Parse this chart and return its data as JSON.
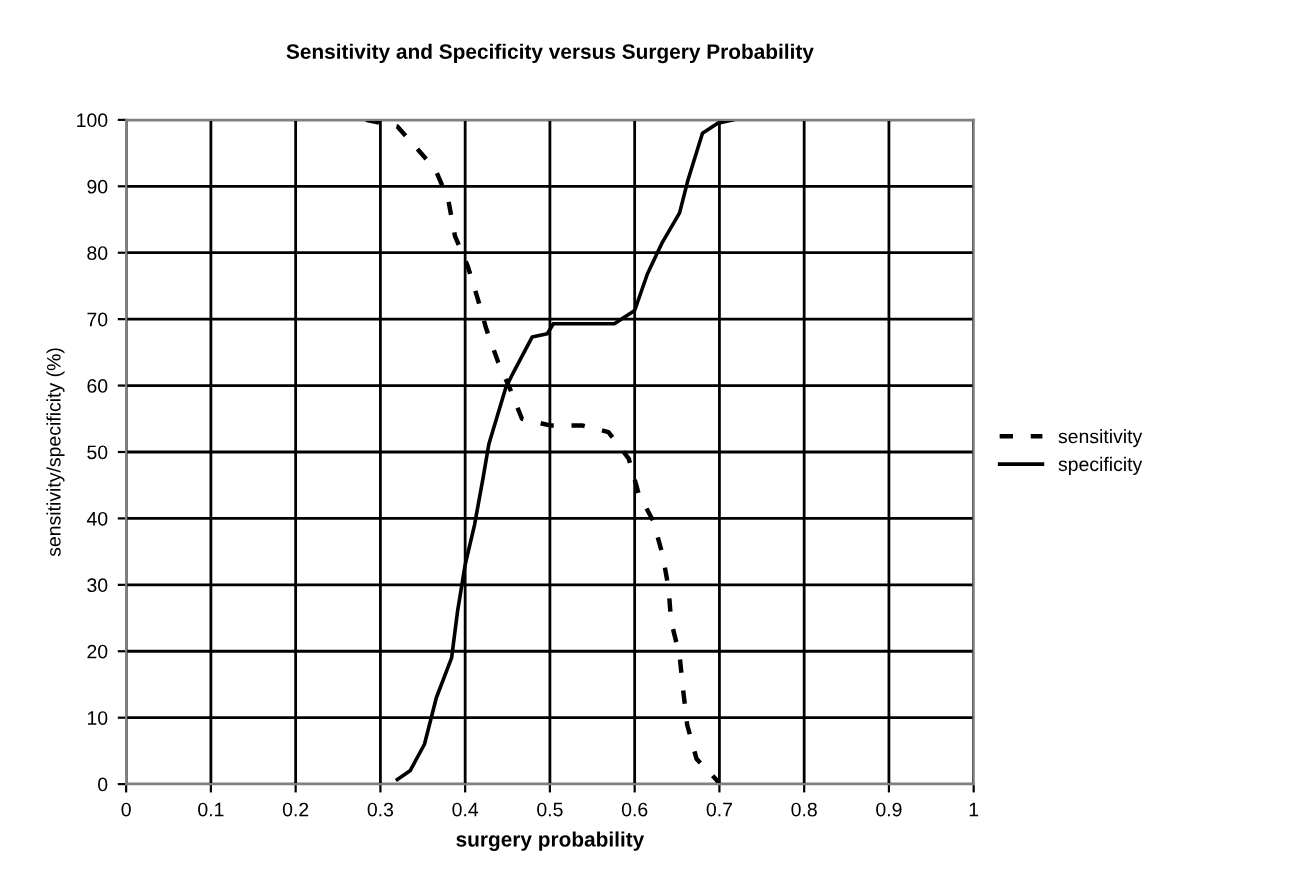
{
  "chart_data": {
    "type": "line",
    "title": "Sensitivity and Specificity versus Surgery Probability",
    "xlabel": "surgery probability",
    "ylabel": "sensitivity/specificity (%)",
    "xlim": [
      0,
      1
    ],
    "xticks": [
      0,
      0.1,
      0.2,
      0.3,
      0.4,
      0.5,
      0.6,
      0.7,
      0.8,
      0.9,
      1
    ],
    "ylim": [
      0,
      100
    ],
    "yticks": [
      0,
      10,
      20,
      30,
      40,
      50,
      60,
      70,
      80,
      90,
      100
    ],
    "grid": true,
    "legend": "right",
    "marker": "none",
    "series": [
      {
        "name": "sensitivity",
        "color": "#000000",
        "line_style": "dashed",
        "x": [
          0.283,
          0.32,
          0.341,
          0.365,
          0.38,
          0.388,
          0.403,
          0.415,
          0.425,
          0.439,
          0.453,
          0.467,
          0.5,
          0.538,
          0.569,
          0.593,
          0.605,
          0.622,
          0.633,
          0.64,
          0.643,
          0.653,
          0.657,
          0.662,
          0.673,
          0.699
        ],
        "values": [
          100,
          99,
          96,
          92.5,
          88,
          82.5,
          78,
          73,
          68.5,
          63.5,
          59.5,
          55,
          54,
          54,
          53,
          49,
          43.6,
          39.6,
          34.5,
          29.5,
          24.5,
          19.4,
          14.4,
          8.9,
          3.8,
          0.3
        ]
      },
      {
        "name": "specificity",
        "color": "#000000",
        "line_style": "solid",
        "x": [
          0.32,
          0.335,
          0.352,
          0.366,
          0.384,
          0.391,
          0.4,
          0.411,
          0.421,
          0.428,
          0.448,
          0.457,
          0.479,
          0.497,
          0.504,
          0.576,
          0.6,
          0.615,
          0.632,
          0.653,
          0.663,
          0.68,
          0.698,
          0.716
        ],
        "values": [
          0.7,
          2,
          6,
          13,
          19,
          26,
          33,
          39,
          46,
          51.2,
          59.7,
          62,
          67.3,
          67.8,
          69.3,
          69.3,
          71.3,
          76.8,
          81.4,
          86,
          91,
          98,
          99.5,
          100
        ]
      }
    ]
  }
}
